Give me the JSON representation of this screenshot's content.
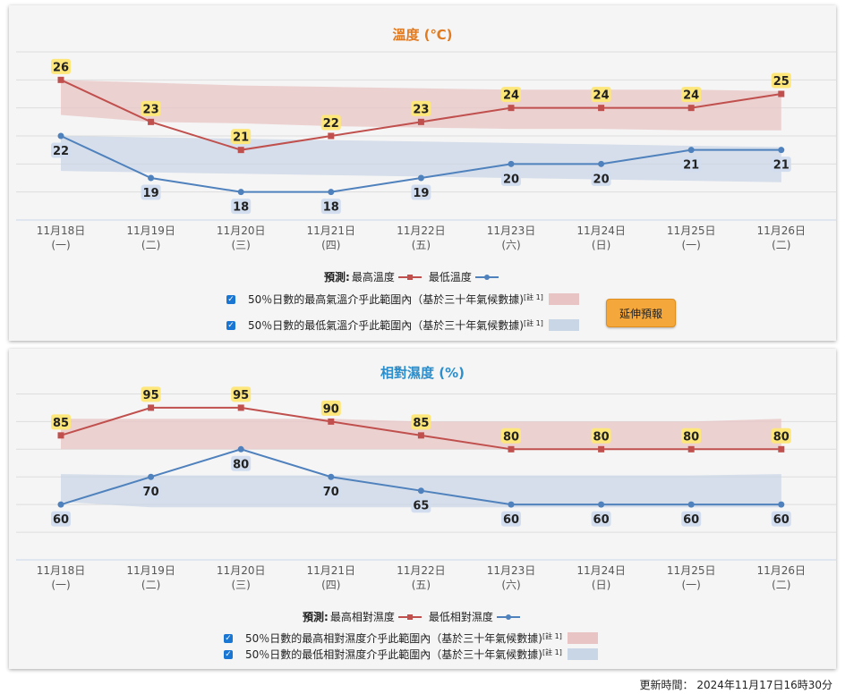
{
  "chart_data": [
    {
      "type": "line",
      "title": "溫度 (℃)",
      "categories": [
        "11月18日",
        "11月19日",
        "11月20日",
        "11月21日",
        "11月22日",
        "11月23日",
        "11月24日",
        "11月25日",
        "11月26日"
      ],
      "weekdays": [
        "(一)",
        "(二)",
        "(三)",
        "(四)",
        "(五)",
        "(六)",
        "(日)",
        "(一)",
        "(二)"
      ],
      "series": [
        {
          "name": "最高溫度",
          "values": [
            26,
            23,
            21,
            22,
            23,
            24,
            24,
            24,
            25
          ],
          "color": "#c0504d",
          "marker": "square"
        },
        {
          "name": "最低溫度",
          "values": [
            22,
            19,
            18,
            18,
            19,
            20,
            20,
            21,
            21
          ],
          "color": "#4f81bd",
          "marker": "circle"
        }
      ],
      "bands": [
        {
          "label": "50％日數的最高氣溫介乎此範圍內（基於三十年氣候數據)",
          "color": "#e8c4c4",
          "lower": [
            23.5,
            23,
            22.9,
            22.7,
            22.6,
            22.5,
            22.5,
            22.4,
            22.4
          ],
          "upper": [
            26,
            25.8,
            25.6,
            25.5,
            25.4,
            25.3,
            25.3,
            25.3,
            25.2
          ]
        },
        {
          "label": "50％日數的最低氣溫介乎此範圍內（基於三十年氣候數據)",
          "color": "#c9d6e6",
          "lower": [
            19.5,
            19.4,
            19.3,
            19.2,
            19.1,
            19,
            18.9,
            18.8,
            18.7
          ],
          "upper": [
            22,
            21.9,
            21.8,
            21.7,
            21.6,
            21.5,
            21.4,
            21.3,
            21.2
          ]
        }
      ],
      "ylim": [
        16,
        28
      ],
      "grid": true,
      "legend_position": "bottom"
    },
    {
      "type": "line",
      "title": "相對濕度 (%)",
      "categories": [
        "11月18日",
        "11月19日",
        "11月20日",
        "11月21日",
        "11月22日",
        "11月23日",
        "11月24日",
        "11月25日",
        "11月26日"
      ],
      "weekdays": [
        "(一)",
        "(二)",
        "(三)",
        "(四)",
        "(五)",
        "(六)",
        "(日)",
        "(一)",
        "(二)"
      ],
      "series": [
        {
          "name": "最高相對濕度",
          "values": [
            85,
            95,
            95,
            90,
            85,
            80,
            80,
            80,
            80
          ],
          "color": "#c0504d",
          "marker": "square"
        },
        {
          "name": "最低相對濕度",
          "values": [
            60,
            70,
            80,
            70,
            65,
            60,
            60,
            60,
            60
          ],
          "color": "#4f81bd",
          "marker": "circle"
        }
      ],
      "bands": [
        {
          "label": "50％日數的最高相對濕度介乎此範圍內（基於三十年氣候數據)",
          "color": "#e8c4c4",
          "lower": [
            80,
            80,
            80,
            80,
            80,
            80,
            80,
            80,
            80
          ],
          "upper": [
            91,
            91,
            91,
            91,
            90,
            90,
            90,
            90,
            91
          ]
        },
        {
          "label": "50％日數的最低相對濕度介乎此範圍內（基於三十年氣候數據)",
          "color": "#c9d6e6",
          "lower": [
            61,
            59,
            59,
            59,
            59,
            59,
            59,
            59,
            59
          ],
          "upper": [
            71,
            70.5,
            70.5,
            70.5,
            70.5,
            70.5,
            70.5,
            70.5,
            71
          ]
        }
      ],
      "ylim": [
        40,
        105
      ],
      "grid": true,
      "legend_position": "bottom"
    }
  ],
  "legend": {
    "forecast_label": "預測:",
    "temp_max": "最高溫度",
    "temp_min": "最低溫度",
    "hum_max": "最高相對濕度",
    "hum_min": "最低相對濕度",
    "note_mark": "[註 1]",
    "checkbox_glyph": "✓"
  },
  "extend_button_label": "延伸預報",
  "update": {
    "label": "更新時間：",
    "value": "2024年11月17日16時30分"
  }
}
